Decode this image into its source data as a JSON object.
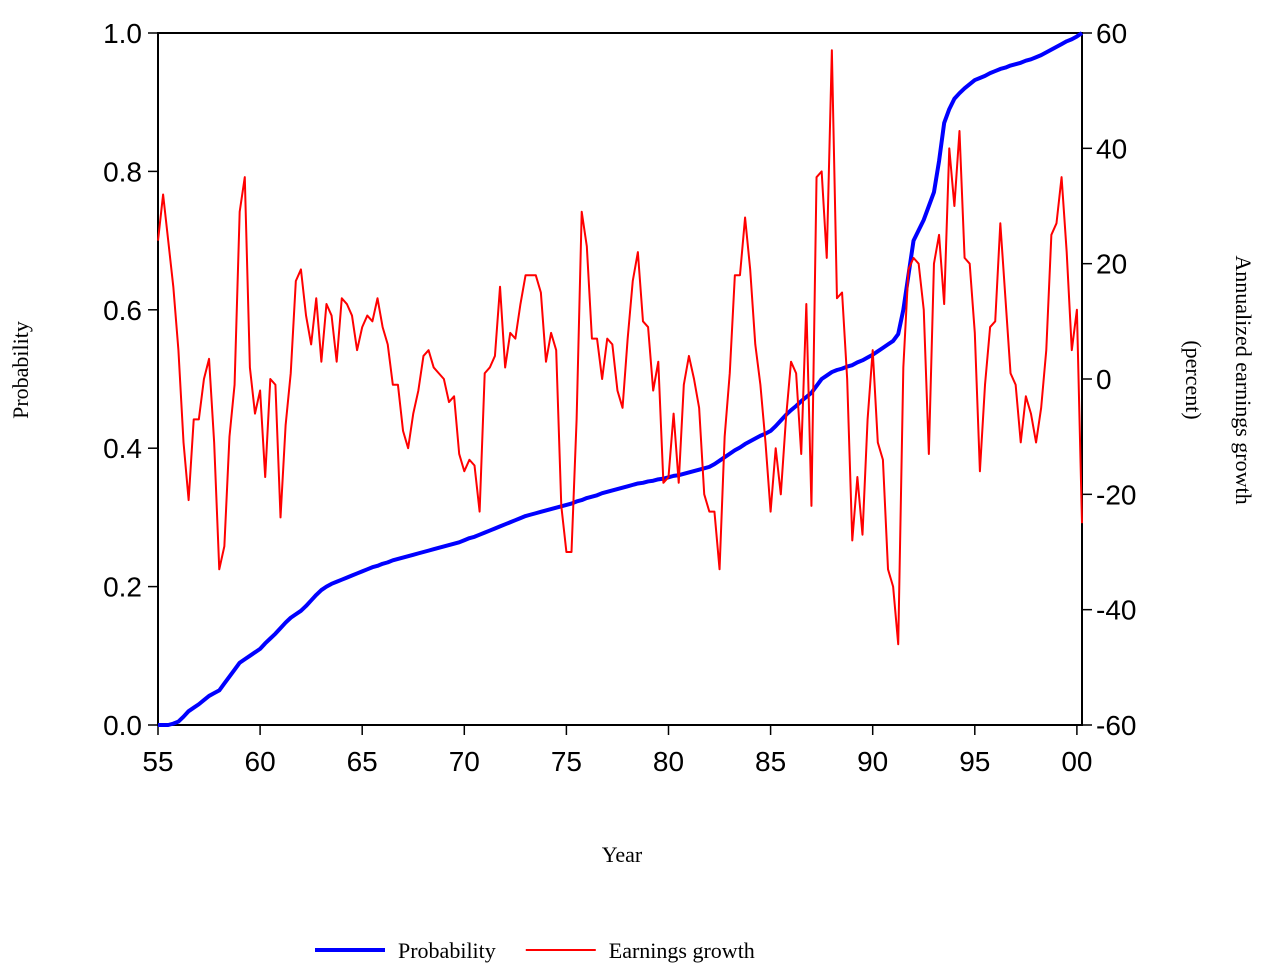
{
  "chart_data": {
    "type": "line",
    "x_label": "Year",
    "y_label": "Probability",
    "y2_label": [
      "Annualized earnings growth",
      "(percent)"
    ],
    "legend": "bottom",
    "xlim": [
      55,
      100.25
    ],
    "xticks": [
      55,
      60,
      65,
      70,
      75,
      80,
      85,
      90,
      95,
      {
        "value": 100,
        "label": "00"
      }
    ],
    "ylim": [
      0,
      1
    ],
    "yticks": [
      {
        "value": 0,
        "label": "0.0"
      },
      0.2,
      0.4,
      0.6,
      0.8,
      {
        "value": 1,
        "label": "1.0"
      }
    ],
    "y2lim": [
      -60,
      60
    ],
    "y2ticks": [
      -60,
      -40,
      -20,
      0,
      20,
      40,
      60
    ],
    "x": [
      55,
      55.25,
      55.5,
      55.75,
      56,
      56.25,
      56.5,
      56.75,
      57,
      57.25,
      57.5,
      57.75,
      58,
      58.25,
      58.5,
      58.75,
      59,
      59.25,
      59.5,
      59.75,
      60,
      60.25,
      60.5,
      60.75,
      61,
      61.25,
      61.5,
      61.75,
      62,
      62.25,
      62.5,
      62.75,
      63,
      63.25,
      63.5,
      63.75,
      64,
      64.25,
      64.5,
      64.75,
      65,
      65.25,
      65.5,
      65.75,
      66,
      66.25,
      66.5,
      66.75,
      67,
      67.25,
      67.5,
      67.75,
      68,
      68.25,
      68.5,
      68.75,
      69,
      69.25,
      69.5,
      69.75,
      70,
      70.25,
      70.5,
      70.75,
      71,
      71.25,
      71.5,
      71.75,
      72,
      72.25,
      72.5,
      72.75,
      73,
      73.25,
      73.5,
      73.75,
      74,
      74.25,
      74.5,
      74.75,
      75,
      75.25,
      75.5,
      75.75,
      76,
      76.25,
      76.5,
      76.75,
      77,
      77.25,
      77.5,
      77.75,
      78,
      78.25,
      78.5,
      78.75,
      79,
      79.25,
      79.5,
      79.75,
      80,
      80.25,
      80.5,
      80.75,
      81,
      81.25,
      81.5,
      81.75,
      82,
      82.25,
      82.5,
      82.75,
      83,
      83.25,
      83.5,
      83.75,
      84,
      84.25,
      84.5,
      84.75,
      85,
      85.25,
      85.5,
      85.75,
      86,
      86.25,
      86.5,
      86.75,
      87,
      87.25,
      87.5,
      87.75,
      88,
      88.25,
      88.5,
      88.75,
      89,
      89.25,
      89.5,
      89.75,
      90,
      90.25,
      90.5,
      90.75,
      91,
      91.25,
      91.5,
      91.75,
      92,
      92.25,
      92.5,
      92.75,
      93,
      93.25,
      93.5,
      93.75,
      94,
      94.25,
      94.5,
      94.75,
      95,
      95.25,
      95.5,
      95.75,
      96,
      96.25,
      96.5,
      96.75,
      97,
      97.25,
      97.5,
      97.75,
      98,
      98.25,
      98.5,
      98.75,
      99,
      99.25,
      99.5,
      99.75,
      100,
      100.25
    ],
    "series": [
      {
        "name": "Probability",
        "color": "#0000ff",
        "axis": "y",
        "values": [
          0,
          0,
          0,
          0.002,
          0.005,
          0.012,
          0.02,
          0.025,
          0.03,
          0.036,
          0.042,
          0.046,
          0.05,
          0.06,
          0.07,
          0.08,
          0.09,
          0.095,
          0.1,
          0.105,
          0.11,
          0.118,
          0.125,
          0.132,
          0.14,
          0.148,
          0.155,
          0.16,
          0.165,
          0.172,
          0.18,
          0.188,
          0.195,
          0.2,
          0.204,
          0.207,
          0.21,
          0.213,
          0.216,
          0.219,
          0.222,
          0.225,
          0.228,
          0.23,
          0.233,
          0.235,
          0.238,
          0.24,
          0.242,
          0.244,
          0.246,
          0.248,
          0.25,
          0.252,
          0.254,
          0.256,
          0.258,
          0.26,
          0.262,
          0.264,
          0.267,
          0.27,
          0.272,
          0.275,
          0.278,
          0.281,
          0.284,
          0.287,
          0.29,
          0.293,
          0.296,
          0.299,
          0.302,
          0.304,
          0.306,
          0.308,
          0.31,
          0.312,
          0.314,
          0.316,
          0.318,
          0.32,
          0.323,
          0.325,
          0.328,
          0.33,
          0.332,
          0.335,
          0.337,
          0.339,
          0.341,
          0.343,
          0.345,
          0.347,
          0.349,
          0.35,
          0.352,
          0.353,
          0.355,
          0.356,
          0.358,
          0.36,
          0.361,
          0.363,
          0.365,
          0.367,
          0.369,
          0.371,
          0.373,
          0.377,
          0.382,
          0.387,
          0.392,
          0.397,
          0.401,
          0.406,
          0.41,
          0.414,
          0.418,
          0.421,
          0.425,
          0.432,
          0.44,
          0.448,
          0.455,
          0.461,
          0.468,
          0.474,
          0.48,
          0.49,
          0.5,
          0.505,
          0.51,
          0.513,
          0.515,
          0.518,
          0.52,
          0.524,
          0.527,
          0.531,
          0.535,
          0.54,
          0.545,
          0.55,
          0.555,
          0.565,
          0.6,
          0.65,
          0.7,
          0.715,
          0.73,
          0.75,
          0.77,
          0.815,
          0.87,
          0.89,
          0.905,
          0.913,
          0.92,
          0.926,
          0.932,
          0.935,
          0.938,
          0.942,
          0.945,
          0.948,
          0.95,
          0.953,
          0.955,
          0.957,
          0.96,
          0.962,
          0.965,
          0.968,
          0.972,
          0.976,
          0.98,
          0.984,
          0.988,
          0.991,
          0.995,
          1.0
        ]
      },
      {
        "name": "Earnings growth",
        "color": "#ff0000",
        "axis": "y2",
        "values": [
          24,
          32,
          24,
          16,
          5,
          -11,
          -21,
          -7,
          -7,
          0,
          3.5,
          -11,
          -33,
          -29,
          -10,
          -1,
          29,
          35,
          2,
          -6,
          -2,
          -17,
          0,
          -1,
          -24,
          -8,
          1,
          17,
          19,
          11,
          6,
          14,
          3,
          13,
          11,
          3,
          14,
          13,
          11,
          5,
          9,
          11,
          10,
          14,
          9,
          6,
          -1,
          -1,
          -9,
          -12,
          -6,
          -2,
          4,
          5,
          2,
          1,
          0,
          -4,
          -3,
          -13,
          -16,
          -14,
          -15,
          -23,
          1,
          2,
          4,
          16,
          2,
          8,
          7,
          13,
          18,
          18,
          18,
          15,
          3,
          8,
          5,
          -22,
          -30,
          -30,
          -7,
          29,
          23,
          7,
          7,
          0,
          7,
          6,
          -2,
          -5,
          7,
          17,
          22,
          10,
          9,
          -2,
          3,
          -18,
          -17,
          -6,
          -18,
          -1,
          4,
          0,
          -5,
          -20,
          -23,
          -23,
          -33,
          -10,
          1,
          18,
          18,
          28,
          19,
          6,
          -1,
          -11,
          -23,
          -12,
          -20,
          -7,
          3,
          1,
          -13,
          13,
          -22,
          35,
          36,
          21,
          57,
          14,
          15,
          0,
          -28,
          -17,
          -27,
          -7,
          5,
          -11,
          -14,
          -33,
          -36,
          -46,
          2,
          19,
          21,
          20,
          12,
          -13,
          20,
          25,
          13,
          40,
          30,
          43,
          21,
          20,
          8,
          -16,
          -1,
          9,
          10,
          27,
          14,
          1,
          -1,
          -11,
          -3,
          -6,
          -11,
          -5,
          5,
          25,
          27,
          35,
          22,
          5,
          12,
          -25
        ]
      }
    ]
  }
}
